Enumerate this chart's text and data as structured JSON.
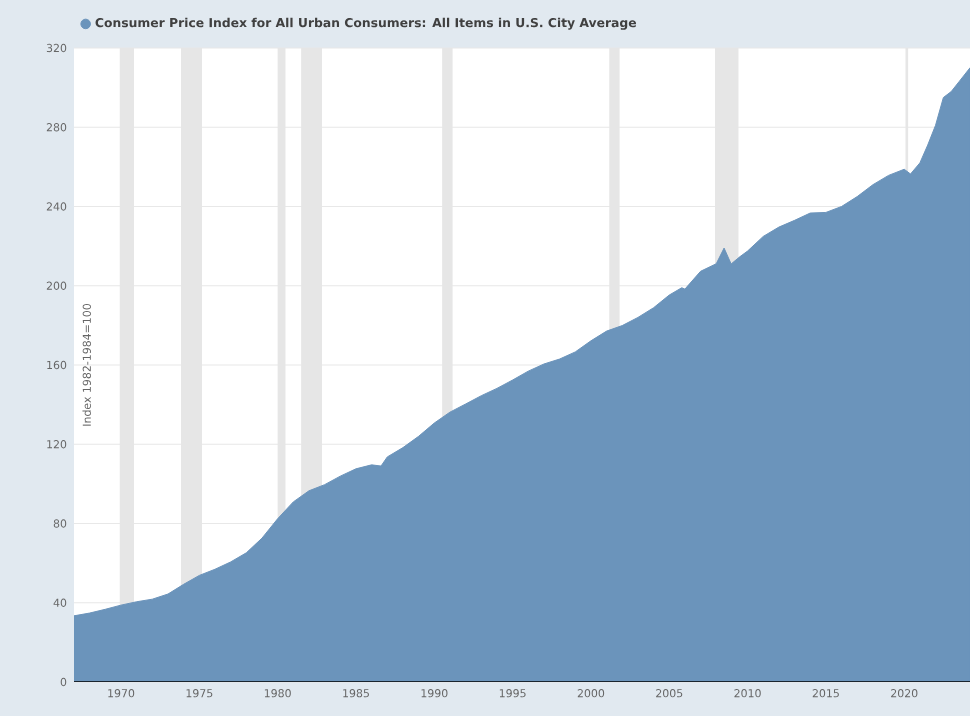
{
  "chart_data": {
    "type": "area",
    "ylabel": "Index 1982-1984=100",
    "series": [
      {
        "name": "Consumer Price Index for All Urban Consumers: All Items in U.S. City Average",
        "color": "#6b94bb",
        "x": [
          1967,
          1968,
          1969,
          1970,
          1971,
          1972,
          1973,
          1974,
          1975,
          1976,
          1977,
          1978,
          1979,
          1980,
          1981,
          1982,
          1983,
          1984,
          1985,
          1986,
          1986.6,
          1987,
          1988,
          1989,
          1990,
          1991,
          1992,
          1993,
          1994,
          1995,
          1996,
          1997,
          1998,
          1999,
          2000,
          2001,
          2002,
          2003,
          2004,
          2005,
          2005.8,
          2006,
          2007,
          2008,
          2008.5,
          2008.95,
          2009.5,
          2010,
          2011,
          2012,
          2013,
          2014,
          2015,
          2016,
          2017,
          2018,
          2019,
          2020,
          2020.4,
          2021,
          2021.5,
          2022,
          2022.5,
          2023,
          2023.5,
          2024.2
        ],
        "values": [
          33.4,
          34.8,
          36.7,
          38.8,
          40.5,
          41.8,
          44.4,
          49.3,
          53.8,
          56.9,
          60.6,
          65.2,
          72.6,
          82.4,
          90.9,
          96.5,
          99.6,
          103.9,
          107.6,
          109.6,
          109,
          113.6,
          118.3,
          124,
          130.7,
          136.2,
          140.3,
          144.5,
          148.2,
          152.4,
          156.9,
          160.5,
          163,
          166.6,
          172.2,
          177.1,
          179.9,
          184,
          188.9,
          195.3,
          199,
          198.3,
          207.3,
          211.1,
          219,
          211,
          214.6,
          217.5,
          224.9,
          229.6,
          233,
          236.7,
          237,
          240,
          245,
          251,
          255.7,
          258.8,
          256.4,
          262,
          271,
          281,
          295,
          298,
          303,
          310
        ]
      }
    ],
    "xlim": [
      1967,
      2024.2
    ],
    "ylim": [
      0,
      320
    ],
    "xticks": [
      1970,
      1975,
      1980,
      1985,
      1990,
      1995,
      2000,
      2005,
      2010,
      2015,
      2020
    ],
    "yticks": [
      0,
      40,
      80,
      120,
      160,
      200,
      240,
      280,
      320
    ],
    "bands": [
      {
        "axis": "x",
        "from": 1969.92,
        "to": 1970.83,
        "color": "#e6e6e6"
      },
      {
        "axis": "x",
        "from": 1973.83,
        "to": 1975.17,
        "color": "#e6e6e6"
      },
      {
        "axis": "x",
        "from": 1980.0,
        "to": 1980.5,
        "color": "#e6e6e6"
      },
      {
        "axis": "x",
        "from": 1981.5,
        "to": 1982.83,
        "color": "#e6e6e6"
      },
      {
        "axis": "x",
        "from": 1990.5,
        "to": 1991.17,
        "color": "#e6e6e6"
      },
      {
        "axis": "x",
        "from": 2001.17,
        "to": 2001.83,
        "color": "#e6e6e6"
      },
      {
        "axis": "x",
        "from": 2007.92,
        "to": 2009.42,
        "color": "#e6e6e6"
      },
      {
        "axis": "x",
        "from": 2020.08,
        "to": 2020.25,
        "color": "#e6e6e6"
      }
    ],
    "grid": "y",
    "legend": "top left"
  }
}
